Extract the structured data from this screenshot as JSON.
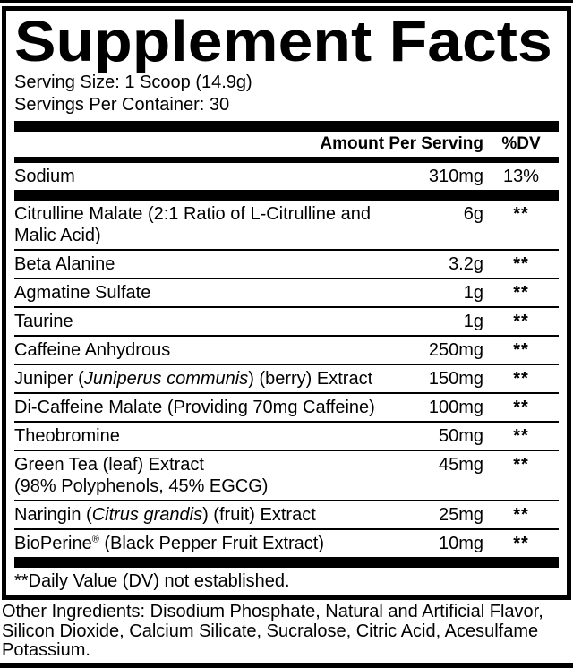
{
  "panel": {
    "title": "Supplement Facts",
    "serving_size": "Serving Size: 1 Scoop (14.9g)",
    "servings_per_container": "Servings Per Container: 30",
    "header": {
      "amount_label": "Amount Per Serving",
      "dv_label": "%DV"
    },
    "sodium": {
      "name": "Sodium",
      "amount": "310mg",
      "dv": "13%"
    },
    "ingredients": [
      {
        "name": [
          {
            "t": "Citrulline Malate (2:1 Ratio of L-Citrulline and Malic Acid)"
          }
        ],
        "amount": "6g",
        "dv": "**"
      },
      {
        "name": [
          {
            "t": "Beta Alanine"
          }
        ],
        "amount": "3.2g",
        "dv": "**"
      },
      {
        "name": [
          {
            "t": "Agmatine Sulfate"
          }
        ],
        "amount": "1g",
        "dv": "**"
      },
      {
        "name": [
          {
            "t": "Taurine"
          }
        ],
        "amount": "1g",
        "dv": "**"
      },
      {
        "name": [
          {
            "t": "Caffeine Anhydrous"
          }
        ],
        "amount": "250mg",
        "dv": "**"
      },
      {
        "name": [
          {
            "t": "Juniper ("
          },
          {
            "t": "Juniperus communis",
            "style": "italic"
          },
          {
            "t": ") (berry) Extract"
          }
        ],
        "amount": "150mg",
        "dv": "**"
      },
      {
        "name": [
          {
            "t": "Di-Caffeine Malate (Providing 70mg Caffeine)"
          }
        ],
        "amount": "100mg",
        "dv": "**"
      },
      {
        "name": [
          {
            "t": "Theobromine"
          }
        ],
        "amount": "50mg",
        "dv": "**"
      },
      {
        "name": [
          {
            "t": "Green Tea (leaf) Extract"
          }
        ],
        "line2": "(98% Polyphenols, 45% EGCG)",
        "amount": "45mg",
        "dv": "**"
      },
      {
        "name": [
          {
            "t": "Naringin ("
          },
          {
            "t": "Citrus grandis",
            "style": "italic"
          },
          {
            "t": ") (fruit) Extract"
          }
        ],
        "amount": "25mg",
        "dv": "**"
      },
      {
        "name": [
          {
            "t": "BioPerine"
          },
          {
            "t": "®",
            "style": "sup"
          },
          {
            "t": " (Black Pepper Fruit Extract)"
          }
        ],
        "amount": "10mg",
        "dv": "**"
      }
    ],
    "footnote": "**Daily Value (DV) not established.",
    "other_ingredients": "Other Ingredients: Disodium Phosphate, Natural and Artificial Flavor, Silicon Dioxide, Calcium Silicate, Sucralose, Citric Acid, Acesulfame Potassium.",
    "colors": {
      "ink": "#000000",
      "paper": "#ffffff"
    }
  }
}
